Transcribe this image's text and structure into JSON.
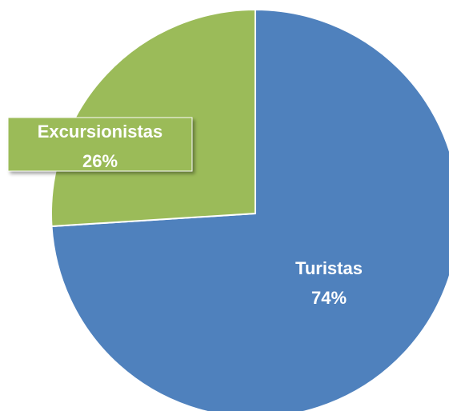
{
  "chart_data": {
    "type": "pie",
    "categories": [
      "Turistas",
      "Excursionistas"
    ],
    "values": [
      74,
      26
    ],
    "value_labels": [
      "74%",
      "26%"
    ],
    "colors": [
      "#4f81bd",
      "#9bbb59"
    ]
  }
}
